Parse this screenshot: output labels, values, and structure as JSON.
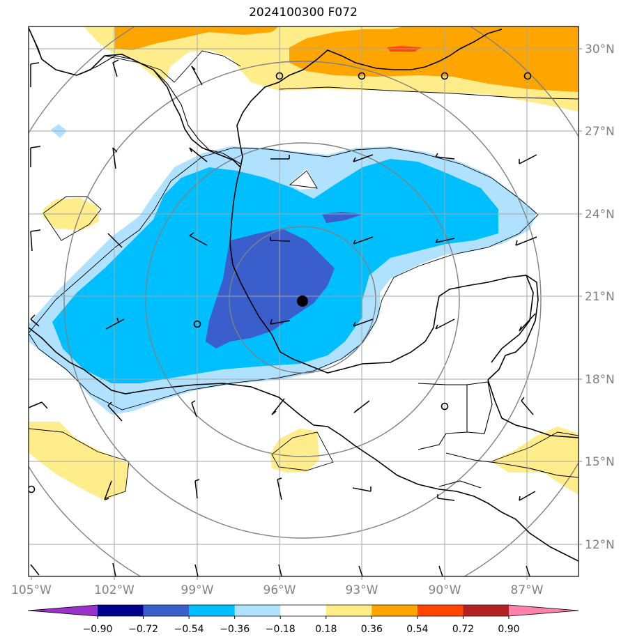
{
  "title": "2024100300 F072",
  "lon_ticks": [
    "105°W",
    "102°W",
    "99°W",
    "96°W",
    "93°W",
    "90°W",
    "87°W"
  ],
  "lat_ticks": [
    "30°N",
    "27°N",
    "24°N",
    "21°N",
    "18°N",
    "15°N",
    "12°N"
  ],
  "colorbar": {
    "labels": [
      "−0.90",
      "−0.72",
      "−0.54",
      "−0.36",
      "−0.18",
      "0.18",
      "0.36",
      "0.54",
      "0.72",
      "0.90"
    ],
    "colors": [
      "#9932cc",
      "#00008b",
      "#3a5fcd",
      "#00bfff",
      "#b0e2ff",
      "#ffffff",
      "#ffec8b",
      "#ffa500",
      "#ff4500",
      "#b22222",
      "#ff82ab"
    ]
  },
  "center_marker": {
    "lon": -95.7,
    "lat": 20.8
  },
  "map_extent": {
    "lon": [
      -105,
      -85
    ],
    "lat": [
      11,
      31
    ]
  }
}
